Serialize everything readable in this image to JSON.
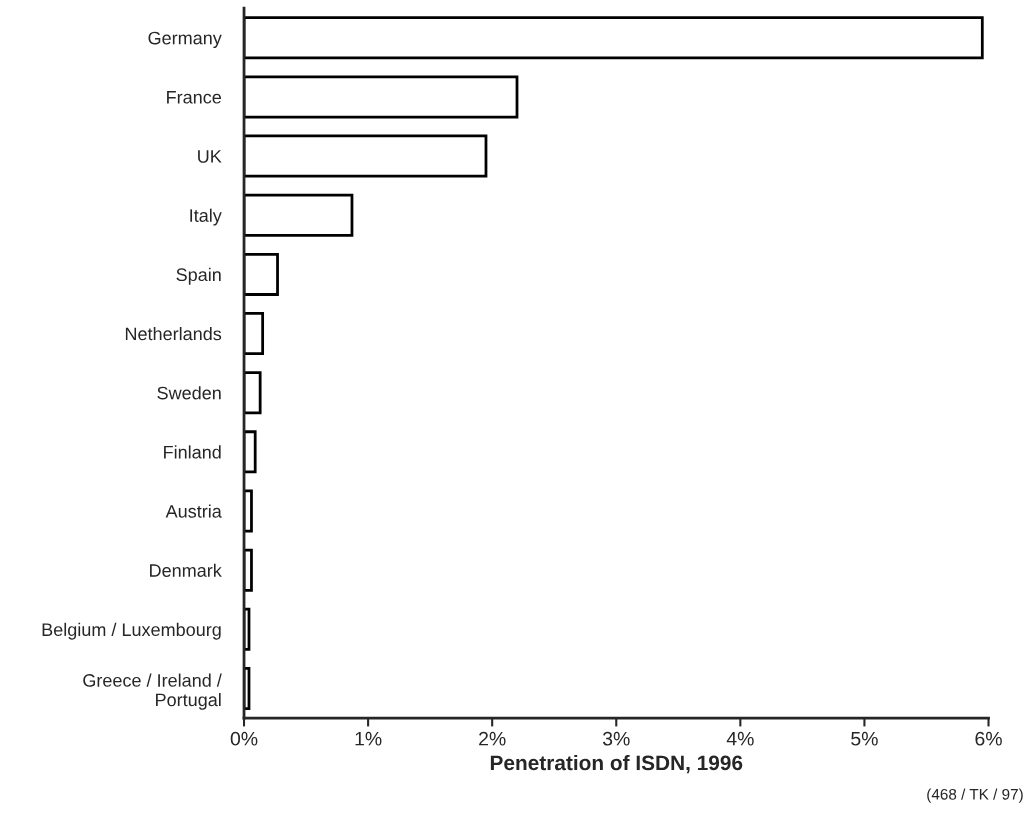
{
  "chart_data": {
    "type": "bar",
    "orientation": "horizontal",
    "xlabel": "Penetration of ISDN, 1996",
    "categories": [
      "Germany",
      "France",
      "UK",
      "Italy",
      "Spain",
      "Netherlands",
      "Sweden",
      "Finland",
      "Austria",
      "Denmark",
      "Belgium / Luxembourg",
      "Greece / Ireland /\nPortugal"
    ],
    "values": [
      5.95,
      2.2,
      1.95,
      0.87,
      0.27,
      0.15,
      0.13,
      0.09,
      0.06,
      0.06,
      0.04,
      0.04
    ],
    "color": "#ffffff",
    "xlim": [
      0,
      6
    ],
    "xticks": [
      {
        "value": 0,
        "label": "0%"
      },
      {
        "value": 1,
        "label": "1%"
      },
      {
        "value": 2,
        "label": "2%"
      },
      {
        "value": 3,
        "label": "3%"
      },
      {
        "value": 4,
        "label": "4%"
      },
      {
        "value": 5,
        "label": "5%"
      },
      {
        "value": 6,
        "label": "6%"
      }
    ],
    "grid": false,
    "annotations": [
      "(468 / TK / 97)"
    ]
  }
}
